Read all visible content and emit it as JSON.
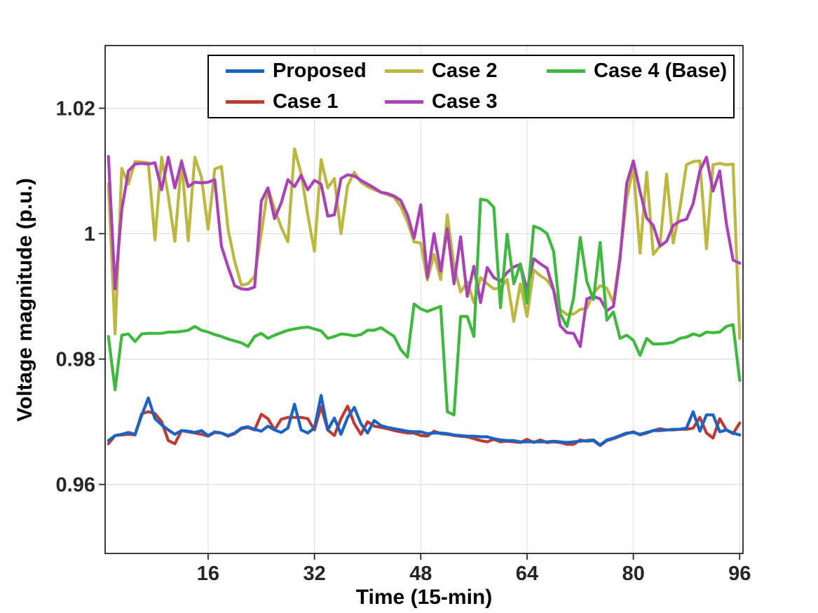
{
  "chart_data": {
    "type": "line",
    "title": "",
    "xlabel": "Time (15-min)",
    "ylabel": "Voltage magnitude (p.u.)",
    "xlim": [
      0.5,
      96.5
    ],
    "ylim": [
      0.949,
      1.03
    ],
    "grid": true,
    "legend_position": "top-inside",
    "xticks": [
      16,
      32,
      48,
      64,
      80,
      96
    ],
    "xtick_labels": [
      "16",
      "32",
      "48",
      "64",
      "80",
      "96"
    ],
    "yticks": [
      0.96,
      0.98,
      1.0,
      1.02
    ],
    "ytick_labels": [
      "0.96",
      "0.98",
      "1",
      "1.02"
    ],
    "x": {
      "start": 1,
      "end": 96,
      "step": 1
    },
    "series": [
      {
        "name": "Proposed",
        "color": "#1A63C5",
        "values": [
          0.967,
          0.9678,
          0.968,
          0.9683,
          0.968,
          0.971,
          0.9738,
          0.9705,
          0.9695,
          0.9687,
          0.968,
          0.9686,
          0.9685,
          0.9683,
          0.9686,
          0.9678,
          0.9684,
          0.9682,
          0.9678,
          0.9682,
          0.969,
          0.9692,
          0.9688,
          0.9685,
          0.9693,
          0.9687,
          0.9683,
          0.969,
          0.9728,
          0.9687,
          0.9682,
          0.969,
          0.9742,
          0.9687,
          0.9706,
          0.968,
          0.9707,
          0.9723,
          0.9697,
          0.9682,
          0.9702,
          0.9694,
          0.9691,
          0.9689,
          0.9687,
          0.9685,
          0.9684,
          0.9684,
          0.9681,
          0.9682,
          0.9682,
          0.9681,
          0.9679,
          0.9678,
          0.9677,
          0.9677,
          0.9676,
          0.9676,
          0.9673,
          0.9671,
          0.967,
          0.967,
          0.9668,
          0.9668,
          0.9668,
          0.9668,
          0.9668,
          0.9669,
          0.9668,
          0.9667,
          0.9668,
          0.9669,
          0.967,
          0.9671,
          0.9663,
          0.9671,
          0.9674,
          0.9678,
          0.9682,
          0.9683,
          0.968,
          0.9683,
          0.9686,
          0.9686,
          0.9687,
          0.9688,
          0.9688,
          0.969,
          0.9716,
          0.9685,
          0.9711,
          0.9711,
          0.9684,
          0.9687,
          0.9682,
          0.9679
        ]
      },
      {
        "name": "Case 1",
        "color": "#BE3B32",
        "values": [
          0.9665,
          0.9678,
          0.9679,
          0.968,
          0.9679,
          0.9713,
          0.9716,
          0.9713,
          0.97,
          0.967,
          0.9665,
          0.9686,
          0.9684,
          0.9682,
          0.968,
          0.9677,
          0.9683,
          0.9682,
          0.9677,
          0.9681,
          0.9689,
          0.9691,
          0.9687,
          0.9712,
          0.9705,
          0.9687,
          0.9704,
          0.9707,
          0.9707,
          0.9707,
          0.9705,
          0.9687,
          0.9724,
          0.9687,
          0.9678,
          0.9705,
          0.9725,
          0.9697,
          0.968,
          0.97,
          0.9693,
          0.9691,
          0.9689,
          0.9686,
          0.9684,
          0.9682,
          0.9682,
          0.9678,
          0.9677,
          0.9685,
          0.9681,
          0.968,
          0.9678,
          0.9677,
          0.9676,
          0.9673,
          0.967,
          0.9668,
          0.9672,
          0.9668,
          0.9669,
          0.9668,
          0.9667,
          0.9672,
          0.9667,
          0.9671,
          0.9667,
          0.9668,
          0.9667,
          0.9664,
          0.9664,
          0.9671,
          0.9669,
          0.967,
          0.9662,
          0.967,
          0.9673,
          0.9677,
          0.9681,
          0.9684,
          0.9679,
          0.9682,
          0.9686,
          0.9689,
          0.9687,
          0.9687,
          0.9688,
          0.9688,
          0.969,
          0.9707,
          0.9682,
          0.9674,
          0.9705,
          0.9687,
          0.9681,
          0.9698
        ]
      },
      {
        "name": "Case 2",
        "color": "#BCB73D",
        "values": [
          1.008,
          0.984,
          1.0104,
          1.0079,
          1.0115,
          1.0114,
          1.0113,
          0.999,
          1.0122,
          1.006,
          0.9988,
          1.0117,
          0.9989,
          1.0122,
          1.009,
          1.0007,
          1.0103,
          1.0107,
          1.0007,
          0.9956,
          0.9918,
          0.992,
          0.9932,
          1.0,
          1.0073,
          1.004,
          1.001,
          0.9987,
          1.0135,
          1.0096,
          1.003,
          0.9972,
          1.0118,
          1.0073,
          1.0088,
          1.0,
          1.0077,
          1.0098,
          1.0082,
          1.0075,
          1.007,
          1.0066,
          1.0062,
          1.0058,
          1.0043,
          1.0019,
          0.9987,
          0.9985,
          0.9926,
          0.9967,
          0.9927,
          1.003,
          0.9948,
          0.9907,
          0.9923,
          0.989,
          0.993,
          0.992,
          0.9912,
          0.9913,
          0.9927,
          0.986,
          0.992,
          0.9868,
          0.9942,
          0.9933,
          0.9926,
          0.991,
          0.9879,
          0.9871,
          0.9872,
          0.9879,
          0.9881,
          0.9905,
          0.9917,
          0.9913,
          0.989,
          0.9965,
          1.0055,
          1.0107,
          0.9969,
          1.0098,
          0.9967,
          0.998,
          1.0095,
          0.9985,
          1.004,
          1.011,
          1.0115,
          1.0116,
          0.9976,
          1.011,
          1.0112,
          1.011,
          1.0111,
          0.9833
        ]
      },
      {
        "name": "Case 3",
        "color": "#AB41B7",
        "values": [
          1.0123,
          0.9912,
          1.0038,
          1.01,
          1.0111,
          1.0112,
          1.0111,
          1.0113,
          1.007,
          1.0122,
          1.0073,
          1.0115,
          1.0075,
          1.0082,
          1.0081,
          1.0082,
          1.0086,
          0.998,
          0.9947,
          0.9917,
          0.9912,
          0.9911,
          0.9915,
          1.0052,
          1.0073,
          1.0024,
          1.0049,
          1.0086,
          1.0075,
          1.0093,
          1.007,
          1.0085,
          1.0079,
          1.0028,
          1.003,
          1.0088,
          1.0094,
          1.0092,
          1.0085,
          1.0079,
          1.0073,
          1.0066,
          1.0064,
          1.006,
          1.0053,
          1.003,
          0.9993,
          1.0046,
          0.993,
          1.0,
          0.994,
          1.0008,
          0.992,
          0.9995,
          0.99,
          0.9948,
          0.989,
          0.9946,
          0.993,
          0.9924,
          0.9938,
          0.9947,
          0.9951,
          0.991,
          0.996,
          0.9952,
          0.9945,
          0.991,
          0.9853,
          0.9842,
          0.9841,
          0.982,
          0.9896,
          0.99,
          0.9896,
          0.9877,
          0.9884,
          0.996,
          1.008,
          1.0116,
          1.0067,
          1.0025,
          1.0013,
          0.998,
          0.9988,
          1.0013,
          1.002,
          1.0023,
          1.0048,
          1.01,
          1.0122,
          1.0068,
          1.01,
          1.0016,
          0.9958,
          0.9953
        ]
      },
      {
        "name": "Case 4 (Base)",
        "color": "#3DB93D",
        "values": [
          0.9836,
          0.9751,
          0.9838,
          0.984,
          0.9828,
          0.984,
          0.9841,
          0.9841,
          0.9841,
          0.9843,
          0.9843,
          0.9844,
          0.9846,
          0.9852,
          0.9846,
          0.9843,
          0.9839,
          0.9836,
          0.9832,
          0.9829,
          0.9826,
          0.982,
          0.9836,
          0.9841,
          0.9833,
          0.9838,
          0.9842,
          0.9846,
          0.9848,
          0.985,
          0.9851,
          0.9848,
          0.9845,
          0.9833,
          0.9836,
          0.984,
          0.9839,
          0.9837,
          0.9839,
          0.9846,
          0.9846,
          0.985,
          0.9843,
          0.9836,
          0.9815,
          0.9803,
          0.9888,
          0.988,
          0.9876,
          0.988,
          0.9884,
          0.9716,
          0.9711,
          0.9868,
          0.9868,
          0.9836,
          1.0055,
          1.0053,
          1.0042,
          0.9882,
          0.9999,
          0.992,
          0.9952,
          0.9889,
          1.0012,
          1.0008,
          1.0,
          0.9972,
          0.9872,
          0.9852,
          0.9897,
          0.9994,
          0.9924,
          0.9895,
          0.9986,
          0.9862,
          0.9875,
          0.9833,
          0.9838,
          0.983,
          0.9806,
          0.9833,
          0.9824,
          0.9824,
          0.9825,
          0.9827,
          0.9833,
          0.9835,
          0.984,
          0.9837,
          0.9843,
          0.9842,
          0.9843,
          0.9852,
          0.9855,
          0.9766
        ]
      }
    ]
  },
  "colors": {
    "background": "#FFFFFF",
    "grid": "#DCDCDC",
    "axis_box": "#262626",
    "tick_label": "#262626",
    "axis_label": "#000000",
    "legend_border": "#000000"
  }
}
